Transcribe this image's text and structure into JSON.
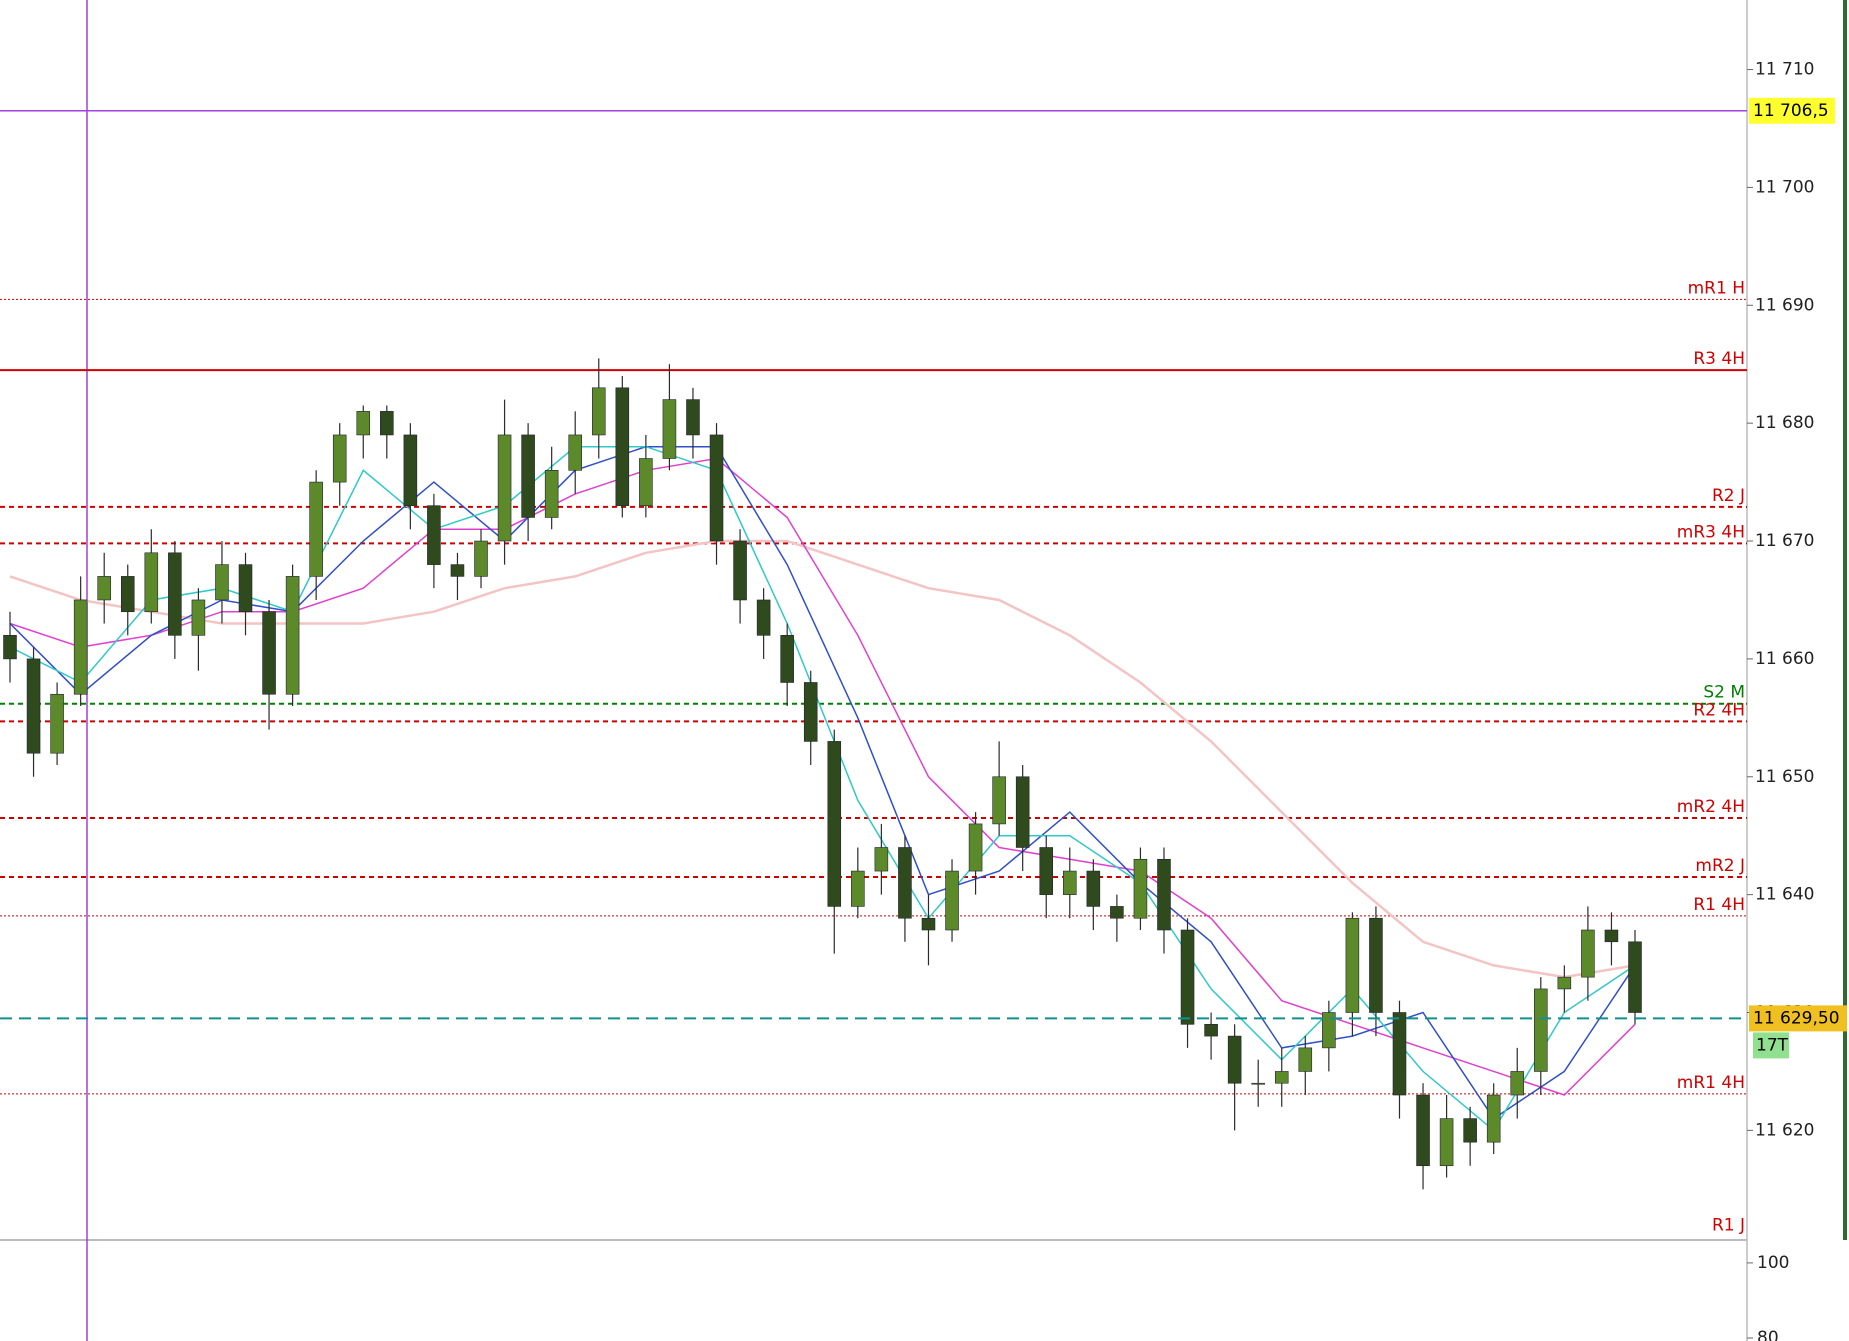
{
  "chart_data": {
    "type": "candlestick",
    "ylim": [
      11610.7,
      11715.9
    ],
    "yticks": [
      {
        "value": 11620,
        "label": "11 620"
      },
      {
        "value": 11630,
        "label": "11 630"
      },
      {
        "value": 11640,
        "label": "11 640"
      },
      {
        "value": 11650,
        "label": "11 650"
      },
      {
        "value": 11660,
        "label": "11 660"
      },
      {
        "value": 11670,
        "label": "11 670"
      },
      {
        "value": 11680,
        "label": "11 680"
      },
      {
        "value": 11690,
        "label": "11 690"
      },
      {
        "value": 11700,
        "label": "11 700"
      },
      {
        "value": 11710,
        "label": "11 710"
      }
    ],
    "candle_colors": {
      "up": "#5c8a2a",
      "down": "#2f4a1c",
      "wick": "#2b2b2b"
    },
    "open": [
      11662,
      11660,
      11652,
      11657,
      11665,
      11667,
      11664,
      11669,
      11662,
      11665,
      11668,
      11664,
      11657,
      11667,
      11675,
      11679,
      11681,
      11679,
      11673,
      11668,
      11667,
      11670,
      11679,
      11672,
      11676,
      11679,
      11683,
      11673,
      11677,
      11682,
      11679,
      11670,
      11665,
      11662,
      11658,
      11653,
      11639,
      11642,
      11644,
      11638,
      11637,
      11642,
      11646,
      11650,
      11644,
      11640,
      11642,
      11639,
      11638,
      11643,
      11637,
      11629,
      11628,
      11624,
      11624,
      11625,
      11627,
      11630,
      11638,
      11630,
      11623,
      11617,
      11621,
      11619,
      11623,
      11625,
      11632,
      11633,
      11637,
      11636
    ],
    "high": [
      11664,
      11661,
      11658,
      11667,
      11669,
      11668,
      11671,
      11670,
      11666,
      11670,
      11669,
      11665,
      11668,
      11676,
      11680,
      11681.5,
      11681.5,
      11680,
      11674,
      11669,
      11671,
      11682,
      11680,
      11678,
      11681,
      11685.5,
      11684,
      11679,
      11685,
      11683,
      11680,
      11671,
      11666,
      11663,
      11659,
      11654,
      11644,
      11646,
      11645,
      11640,
      11643,
      11647,
      11653,
      11651,
      11645,
      11644,
      11643,
      11640,
      11644,
      11644,
      11638,
      11630,
      11629,
      11626,
      11627,
      11628,
      11631,
      11638.5,
      11639,
      11631,
      11624,
      11623,
      11622,
      11624,
      11627,
      11633,
      11634,
      11639,
      11638.5,
      11637
    ],
    "low": [
      11658,
      11650,
      11651,
      11656,
      11663,
      11662,
      11663,
      11660,
      11659,
      11663,
      11662,
      11654,
      11656,
      11665,
      11673,
      11677,
      11677,
      11671,
      11666,
      11665,
      11666,
      11668,
      11670,
      11671,
      11674,
      11677,
      11672,
      11672,
      11676,
      11677,
      11668,
      11663,
      11660,
      11656,
      11651,
      11635,
      11638,
      11640,
      11636,
      11634,
      11636,
      11640,
      11645,
      11642,
      11638,
      11638,
      11637,
      11636,
      11637,
      11635,
      11627,
      11626,
      11620,
      11622,
      11622,
      11623,
      11625,
      11628,
      11628,
      11621,
      11615,
      11616,
      11617,
      11618,
      11621,
      11623,
      11630,
      11631,
      11634,
      11629
    ],
    "close": [
      11660,
      11652,
      11657,
      11665,
      11667,
      11664,
      11669,
      11662,
      11665,
      11668,
      11664,
      11657,
      11667,
      11675,
      11679,
      11681,
      11679,
      11673,
      11668,
      11667,
      11670,
      11679,
      11672,
      11676,
      11679,
      11683,
      11673,
      11677,
      11682,
      11679,
      11670,
      11665,
      11662,
      11658,
      11653,
      11639,
      11642,
      11644,
      11638,
      11637,
      11642,
      11646,
      11650,
      11644,
      11640,
      11642,
      11639,
      11638,
      11643,
      11637,
      11629,
      11628,
      11624,
      11624,
      11625,
      11627,
      11630,
      11638,
      11630,
      11623,
      11617,
      11621,
      11619,
      11623,
      11625,
      11632,
      11633,
      11637,
      11636,
      11630
    ],
    "series": [
      {
        "color": "#f4c4c4",
        "values": [
          11667,
          11665,
          11664,
          11663,
          11663,
          11663,
          11664,
          11666,
          11667,
          11669,
          11670,
          11670,
          11668,
          11666,
          11665,
          11662,
          11658,
          11653,
          11647,
          11641,
          11636,
          11634,
          11633,
          11634
        ]
      },
      {
        "color": "#e040d0",
        "values": [
          11663,
          11661,
          11662,
          11664,
          11664,
          11666,
          11671,
          11671,
          11674,
          11676,
          11677,
          11672,
          11662,
          11650,
          11644,
          11643,
          11642,
          11638,
          11631,
          11629,
          11627,
          11625,
          11623,
          11629
        ]
      },
      {
        "color": "#3050c8",
        "values": [
          11663,
          11657,
          11662,
          11665,
          11664,
          11670,
          11675,
          11670,
          11676,
          11678,
          11678,
          11668,
          11655,
          11640,
          11642,
          11647,
          11641,
          11636,
          11627,
          11628,
          11630,
          11621,
          11625,
          11634
        ]
      },
      {
        "color": "#30c8c8",
        "values": [
          11661,
          11658,
          11665,
          11666,
          11664,
          11676,
          11671,
          11673,
          11678,
          11678,
          11676,
          11663,
          11648,
          11638,
          11645,
          11645,
          11641,
          11632,
          11626,
          11632,
          11625,
          11620,
          11630,
          11634
        ]
      }
    ],
    "levels": [
      {
        "label": "mR1 H",
        "value": 11690.5,
        "color": "#d00000",
        "style": "dotted"
      },
      {
        "label": "R3 4H",
        "value": 11684.5,
        "color": "#d00000",
        "style": "solid"
      },
      {
        "label": "R2 J",
        "value": 11672.9,
        "color": "#d00000",
        "style": "dashed"
      },
      {
        "label": "mR3 4H",
        "value": 11669.8,
        "color": "#d00000",
        "style": "dashed"
      },
      {
        "label": "S2 M",
        "value": 11656.2,
        "color": "#008000",
        "style": "dashed"
      },
      {
        "label": "R2 4H",
        "value": 11654.7,
        "color": "#d00000",
        "style": "dashed"
      },
      {
        "label": "mR2 4H",
        "value": 11646.5,
        "color": "#d00000",
        "style": "dashed"
      },
      {
        "label": "mR2 J",
        "value": 11641.5,
        "color": "#d00000",
        "style": "dashed"
      },
      {
        "label": "R1 4H",
        "value": 11638.2,
        "color": "#d00000",
        "style": "dotted"
      },
      {
        "label": "mR1 4H",
        "value": 11623.1,
        "color": "#d00000",
        "style": "dotted"
      },
      {
        "label": "R1 J",
        "value": 11611,
        "color": "#d00000",
        "style": "none"
      }
    ],
    "marker_line": {
      "value": 11706.5,
      "value_label": "11 706,5",
      "color": "#a040e0",
      "label_bg": "#ffff30"
    },
    "price_line": {
      "value": 11629.5,
      "value_label": "11 629,50",
      "color": "#109090",
      "label_bg": "#f0c020",
      "countdown": "17T",
      "countdown_bg": "#90e090"
    },
    "lower_panel": {
      "ylim": [
        79.2,
        106.1
      ],
      "yticks": [
        80,
        100
      ]
    }
  }
}
